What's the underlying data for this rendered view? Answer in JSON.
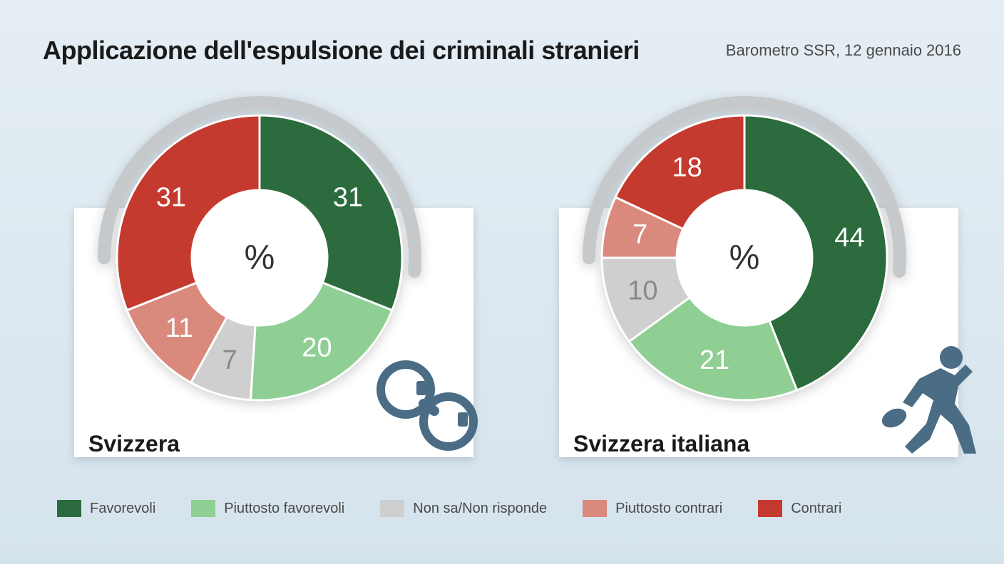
{
  "header": {
    "title": "Applicazione dell'espulsione dei criminali stranieri",
    "title_fontsize": 36,
    "subtitle": "Barometro SSR, 12 gennaio 2016",
    "subtitle_fontsize": 22
  },
  "colors": {
    "bg_top": "#e5eef4",
    "bg_bottom": "#d5e3ed",
    "card": "#ffffff",
    "arc_outer": "#c5c9cc",
    "icon": "#4a6c85"
  },
  "legend": [
    {
      "label": "Favorevoli",
      "color": "#2b6b3d"
    },
    {
      "label": "Piuttosto favorevoli",
      "color": "#8fcf94"
    },
    {
      "label": "Non sa/Non risponde",
      "color": "#cfcfcf"
    },
    {
      "label": "Piuttosto contrari",
      "color": "#d98a7d"
    },
    {
      "label": "Contrari",
      "color": "#c53a2e"
    }
  ],
  "charts": [
    {
      "label": "Svizzera",
      "center": "%",
      "icon": "handcuffs",
      "value_fontsize": 38,
      "slices": [
        {
          "value": 31,
          "color": "#2b6b3d",
          "text_color": "#ffffff"
        },
        {
          "value": 20,
          "color": "#8fcf94",
          "text_color": "#ffffff"
        },
        {
          "value": 7,
          "color": "#cfcfcf",
          "text_color": "#8a8a8a"
        },
        {
          "value": 11,
          "color": "#d98a7d",
          "text_color": "#ffffff"
        },
        {
          "value": 31,
          "color": "#c53a2e",
          "text_color": "#ffffff"
        }
      ]
    },
    {
      "label": "Svizzera italiana",
      "center": "%",
      "icon": "running-thief",
      "value_fontsize": 38,
      "slices": [
        {
          "value": 44,
          "color": "#2b6b3d",
          "text_color": "#ffffff"
        },
        {
          "value": 21,
          "color": "#8fcf94",
          "text_color": "#ffffff"
        },
        {
          "value": 10,
          "color": "#cfcfcf",
          "text_color": "#8a8a8a"
        },
        {
          "value": 7,
          "color": "#d98a7d",
          "text_color": "#ffffff"
        },
        {
          "value": 18,
          "color": "#c53a2e",
          "text_color": "#ffffff"
        }
      ]
    }
  ],
  "donut": {
    "outer_r": 200,
    "inner_r": 95,
    "start_angle_deg": -90,
    "label_r": 150,
    "outer_arc": {
      "r": 218,
      "stroke_width": 18,
      "color": "#c5c9cc"
    }
  }
}
